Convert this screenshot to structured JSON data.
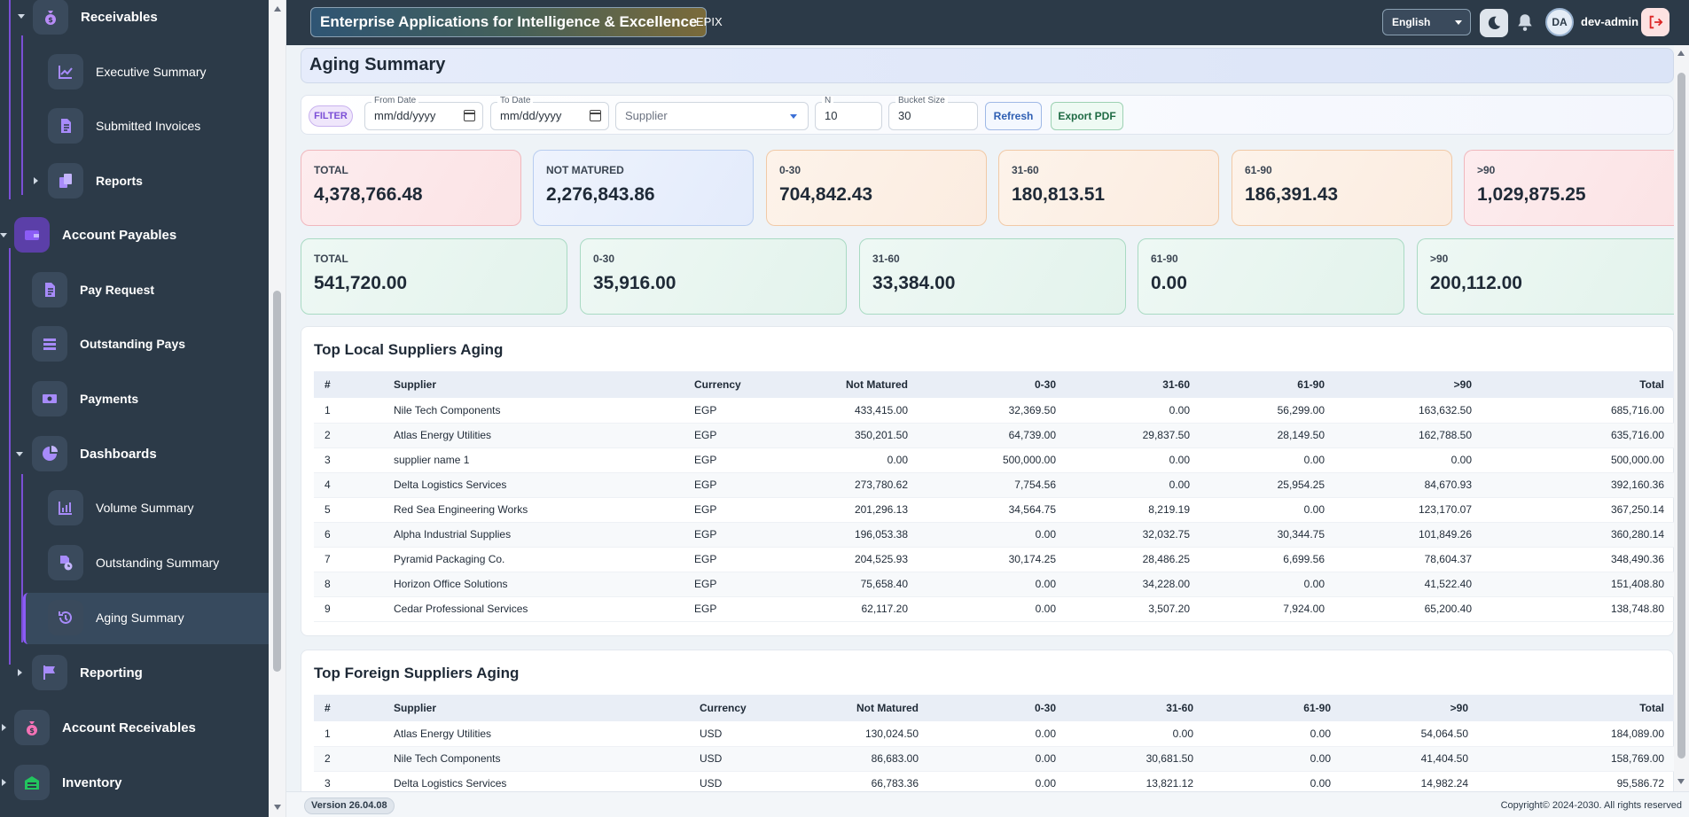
{
  "app": {
    "title": "Enterprise Applications for Intelligence & Excellence",
    "short_name": "EPIX",
    "language": "English",
    "user_initials": "DA",
    "user_name": "dev-admin"
  },
  "sidebar": {
    "items": [
      {
        "label": "Receivables",
        "icon": "money-bag-icon"
      },
      {
        "label": "Executive Summary",
        "icon": "line-chart-icon"
      },
      {
        "label": "Submitted Invoices",
        "icon": "document-icon"
      },
      {
        "label": "Reports",
        "icon": "files-icon"
      },
      {
        "label": "Account Payables",
        "icon": "wallet-icon"
      },
      {
        "label": "Pay Request",
        "icon": "document-icon"
      },
      {
        "label": "Outstanding Pays",
        "icon": "stack-icon"
      },
      {
        "label": "Payments",
        "icon": "cash-icon"
      },
      {
        "label": "Dashboards",
        "icon": "pie-chart-icon"
      },
      {
        "label": "Volume Summary",
        "icon": "bar-chart-icon"
      },
      {
        "label": "Outstanding Summary",
        "icon": "document-clock-icon"
      },
      {
        "label": "Aging Summary",
        "icon": "history-icon"
      },
      {
        "label": "Reporting",
        "icon": "flag-chart-icon"
      },
      {
        "label": "Account Receivables",
        "icon": "money-bag-icon"
      },
      {
        "label": "Inventory",
        "icon": "warehouse-icon"
      }
    ]
  },
  "page": {
    "title": "Aging Summary"
  },
  "filters": {
    "chip": "FILTER",
    "from_date": {
      "label": "From Date",
      "value": "mm/dd/yyyy"
    },
    "to_date": {
      "label": "To Date",
      "value": "mm/dd/yyyy"
    },
    "supplier": {
      "placeholder": "Supplier"
    },
    "n": {
      "label": "N",
      "value": "10"
    },
    "bucket_size": {
      "label": "Bucket Size",
      "value": "30"
    },
    "refresh_label": "Refresh",
    "export_label": "Export PDF"
  },
  "cards_row1": [
    {
      "label": "TOTAL",
      "value": "4,378,766.48"
    },
    {
      "label": "NOT MATURED",
      "value": "2,276,843.86"
    },
    {
      "label": "0-30",
      "value": "704,842.43"
    },
    {
      "label": "31-60",
      "value": "180,813.51"
    },
    {
      "label": "61-90",
      "value": "186,391.43"
    },
    {
      "label": ">90",
      "value": "1,029,875.25"
    }
  ],
  "cards_row2": [
    {
      "label": "TOTAL",
      "value": "541,720.00"
    },
    {
      "label": "0-30",
      "value": "35,916.00"
    },
    {
      "label": "31-60",
      "value": "33,384.00"
    },
    {
      "label": "61-90",
      "value": "0.00"
    },
    {
      "label": ">90",
      "value": "200,112.00"
    }
  ],
  "local_table": {
    "title": "Top Local Suppliers Aging",
    "headers": [
      "#",
      "Supplier",
      "Currency",
      "Not Matured",
      "0-30",
      "31-60",
      "61-90",
      ">90",
      "Total"
    ],
    "rows": [
      [
        "1",
        "Nile Tech Components",
        "EGP",
        "433,415.00",
        "32,369.50",
        "0.00",
        "56,299.00",
        "163,632.50",
        "685,716.00"
      ],
      [
        "2",
        "Atlas Energy Utilities",
        "EGP",
        "350,201.50",
        "64,739.00",
        "29,837.50",
        "28,149.50",
        "162,788.50",
        "635,716.00"
      ],
      [
        "3",
        "supplier name 1",
        "EGP",
        "0.00",
        "500,000.00",
        "0.00",
        "0.00",
        "0.00",
        "500,000.00"
      ],
      [
        "4",
        "Delta Logistics Services",
        "EGP",
        "273,780.62",
        "7,754.56",
        "0.00",
        "25,954.25",
        "84,670.93",
        "392,160.36"
      ],
      [
        "5",
        "Red Sea Engineering Works",
        "EGP",
        "201,296.13",
        "34,564.75",
        "8,219.19",
        "0.00",
        "123,170.07",
        "367,250.14"
      ],
      [
        "6",
        "Alpha Industrial Supplies",
        "EGP",
        "196,053.38",
        "0.00",
        "32,032.75",
        "30,344.75",
        "101,849.26",
        "360,280.14"
      ],
      [
        "7",
        "Pyramid Packaging Co.",
        "EGP",
        "204,525.93",
        "30,174.25",
        "28,486.25",
        "6,699.56",
        "78,604.37",
        "348,490.36"
      ],
      [
        "8",
        "Horizon Office Solutions",
        "EGP",
        "75,658.40",
        "0.00",
        "34,228.00",
        "0.00",
        "41,522.40",
        "151,408.80"
      ],
      [
        "9",
        "Cedar Professional Services",
        "EGP",
        "62,117.20",
        "0.00",
        "3,507.20",
        "7,924.00",
        "65,200.40",
        "138,748.80"
      ]
    ]
  },
  "foreign_table": {
    "title": "Top Foreign Suppliers Aging",
    "headers": [
      "#",
      "Supplier",
      "Currency",
      "Not Matured",
      "0-30",
      "31-60",
      "61-90",
      ">90",
      "Total"
    ],
    "rows": [
      [
        "1",
        "Atlas Energy Utilities",
        "USD",
        "130,024.50",
        "0.00",
        "0.00",
        "0.00",
        "54,064.50",
        "184,089.00"
      ],
      [
        "2",
        "Nile Tech Components",
        "USD",
        "86,683.00",
        "0.00",
        "30,681.50",
        "0.00",
        "41,404.50",
        "158,769.00"
      ],
      [
        "3",
        "Delta Logistics Services",
        "USD",
        "66,783.36",
        "0.00",
        "13,821.12",
        "0.00",
        "14,982.24",
        "95,586.72"
      ]
    ]
  },
  "footer": {
    "version": "Version 26.04.08",
    "copyright": "Copyright© 2024-2030. All rights reserved"
  },
  "colors": {
    "sidebar_bg": "#2c3a48",
    "accent_purple": "#8b5cf6",
    "refresh_blue": "#2f5fb3",
    "export_green": "#1f6b44"
  }
}
